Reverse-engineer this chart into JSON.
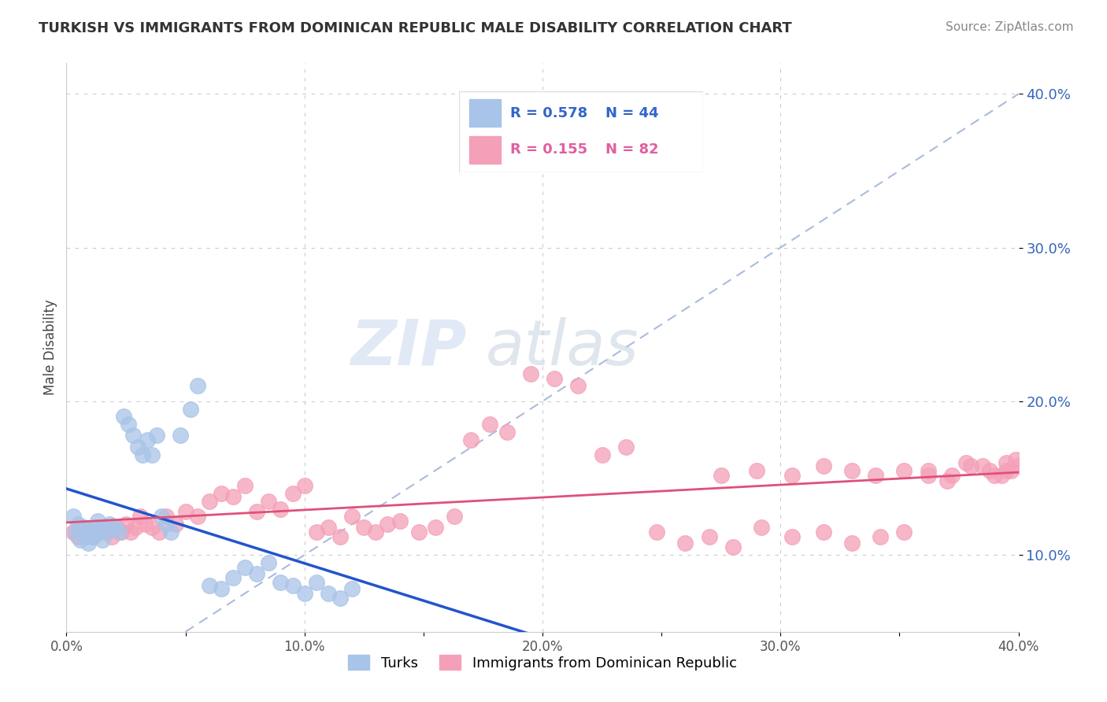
{
  "title": "TURKISH VS IMMIGRANTS FROM DOMINICAN REPUBLIC MALE DISABILITY CORRELATION CHART",
  "source": "Source: ZipAtlas.com",
  "ylabel": "Male Disability",
  "xlim": [
    0.0,
    0.4
  ],
  "ylim": [
    0.05,
    0.42
  ],
  "xtick_labels": [
    "0.0%",
    "",
    "10.0%",
    "",
    "20.0%",
    "",
    "30.0%",
    "",
    "40.0%"
  ],
  "xtick_vals": [
    0.0,
    0.05,
    0.1,
    0.15,
    0.2,
    0.25,
    0.3,
    0.35,
    0.4
  ],
  "ytick_labels": [
    "10.0%",
    "20.0%",
    "30.0%",
    "40.0%"
  ],
  "ytick_vals": [
    0.1,
    0.2,
    0.3,
    0.4
  ],
  "turks_color": "#a8c4e8",
  "dr_color": "#f4a0b8",
  "turks_line_color": "#2255cc",
  "dr_line_color": "#e0507a",
  "diag_color": "#aabbdd",
  "turks_R": 0.578,
  "turks_N": 44,
  "dr_R": 0.155,
  "dr_N": 82,
  "legend_label_1": "Turks",
  "legend_label_2": "Immigrants from Dominican Republic",
  "watermark_1": "ZIP",
  "watermark_2": "atlas",
  "turks_x": [
    0.003,
    0.004,
    0.005,
    0.006,
    0.007,
    0.008,
    0.009,
    0.01,
    0.011,
    0.012,
    0.013,
    0.014,
    0.015,
    0.016,
    0.018,
    0.02,
    0.022,
    0.024,
    0.026,
    0.028,
    0.03,
    0.032,
    0.034,
    0.036,
    0.038,
    0.04,
    0.042,
    0.044,
    0.048,
    0.052,
    0.055,
    0.06,
    0.065,
    0.07,
    0.075,
    0.08,
    0.085,
    0.09,
    0.095,
    0.1,
    0.105,
    0.11,
    0.115,
    0.12
  ],
  "turks_y": [
    0.125,
    0.115,
    0.12,
    0.11,
    0.118,
    0.112,
    0.108,
    0.115,
    0.112,
    0.118,
    0.122,
    0.115,
    0.11,
    0.115,
    0.12,
    0.118,
    0.115,
    0.19,
    0.185,
    0.178,
    0.17,
    0.165,
    0.175,
    0.165,
    0.178,
    0.125,
    0.12,
    0.115,
    0.178,
    0.195,
    0.21,
    0.08,
    0.078,
    0.085,
    0.092,
    0.088,
    0.095,
    0.082,
    0.08,
    0.075,
    0.082,
    0.075,
    0.072,
    0.078
  ],
  "dr_x": [
    0.003,
    0.005,
    0.007,
    0.009,
    0.011,
    0.013,
    0.015,
    0.017,
    0.019,
    0.021,
    0.023,
    0.025,
    0.027,
    0.029,
    0.031,
    0.033,
    0.036,
    0.039,
    0.042,
    0.046,
    0.05,
    0.055,
    0.06,
    0.065,
    0.07,
    0.075,
    0.08,
    0.085,
    0.09,
    0.095,
    0.1,
    0.105,
    0.11,
    0.115,
    0.12,
    0.125,
    0.13,
    0.135,
    0.14,
    0.148,
    0.155,
    0.163,
    0.17,
    0.178,
    0.185,
    0.195,
    0.205,
    0.215,
    0.225,
    0.235,
    0.248,
    0.26,
    0.27,
    0.28,
    0.292,
    0.305,
    0.318,
    0.33,
    0.342,
    0.352,
    0.362,
    0.372,
    0.38,
    0.388,
    0.393,
    0.395,
    0.397,
    0.399,
    0.4,
    0.395,
    0.39,
    0.385,
    0.378,
    0.37,
    0.362,
    0.352,
    0.34,
    0.33,
    0.318,
    0.305,
    0.29,
    0.275
  ],
  "dr_y": [
    0.115,
    0.112,
    0.118,
    0.115,
    0.112,
    0.115,
    0.118,
    0.115,
    0.112,
    0.118,
    0.115,
    0.12,
    0.115,
    0.118,
    0.125,
    0.12,
    0.118,
    0.115,
    0.125,
    0.12,
    0.128,
    0.125,
    0.135,
    0.14,
    0.138,
    0.145,
    0.128,
    0.135,
    0.13,
    0.14,
    0.145,
    0.115,
    0.118,
    0.112,
    0.125,
    0.118,
    0.115,
    0.12,
    0.122,
    0.115,
    0.118,
    0.125,
    0.175,
    0.185,
    0.18,
    0.218,
    0.215,
    0.21,
    0.165,
    0.17,
    0.115,
    0.108,
    0.112,
    0.105,
    0.118,
    0.112,
    0.115,
    0.108,
    0.112,
    0.115,
    0.155,
    0.152,
    0.158,
    0.155,
    0.152,
    0.16,
    0.155,
    0.162,
    0.158,
    0.155,
    0.152,
    0.158,
    0.16,
    0.148,
    0.152,
    0.155,
    0.152,
    0.155,
    0.158,
    0.152,
    0.155,
    0.152
  ]
}
